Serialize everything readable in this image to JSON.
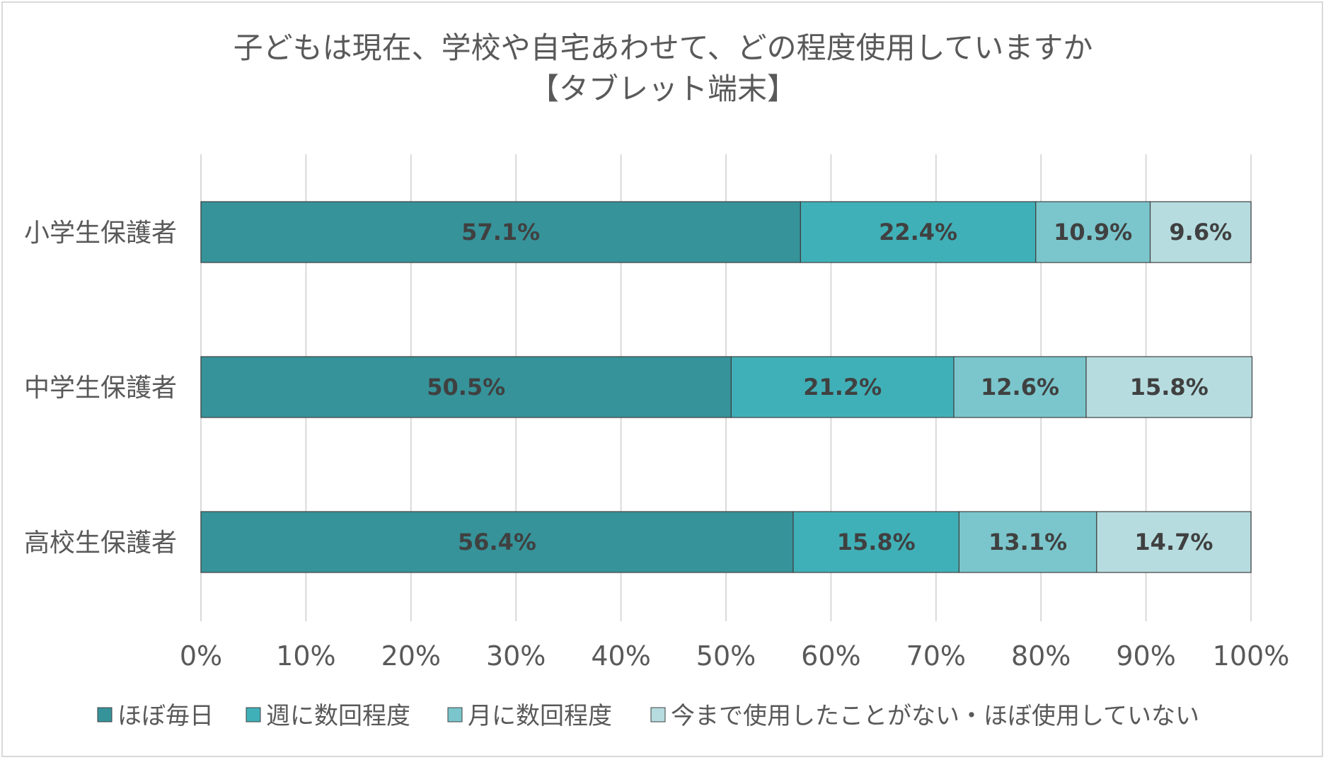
{
  "chart_data": {
    "type": "bar",
    "orientation": "horizontal",
    "stacked": "100%",
    "title": "子どもは現在、学校や自宅あわせて、どの程度使用していますか",
    "subtitle": "【タブレット端末】",
    "categories": [
      "小学生保護者",
      "中学生保護者",
      "高校生保護者"
    ],
    "series": [
      {
        "name": "ほぼ毎日",
        "color": "#36939a",
        "values": [
          57.1,
          50.5,
          56.4
        ]
      },
      {
        "name": "週に数回程度",
        "color": "#40b0b8",
        "values": [
          22.4,
          21.2,
          15.8
        ]
      },
      {
        "name": "月に数回程度",
        "color": "#7ac6cc",
        "values": [
          10.9,
          12.6,
          13.1
        ]
      },
      {
        "name": "今まで使用したことがない・ほぼ使用していない",
        "color": "#b6dcdf",
        "values": [
          9.6,
          15.8,
          14.7
        ]
      }
    ],
    "value_labels": [
      [
        "57.1%",
        "22.4%",
        "10.9%",
        "9.6%"
      ],
      [
        "50.5%",
        "21.2%",
        "12.6%",
        "15.8%"
      ],
      [
        "56.4%",
        "15.8%",
        "13.1%",
        "14.7%"
      ]
    ],
    "xlim": [
      0,
      100
    ],
    "xticks": [
      0,
      10,
      20,
      30,
      40,
      50,
      60,
      70,
      80,
      90,
      100
    ],
    "xtick_labels": [
      "0%",
      "10%",
      "20%",
      "30%",
      "40%",
      "50%",
      "60%",
      "70%",
      "80%",
      "90%",
      "100%"
    ],
    "grid": true,
    "legend_position": "bottom"
  }
}
